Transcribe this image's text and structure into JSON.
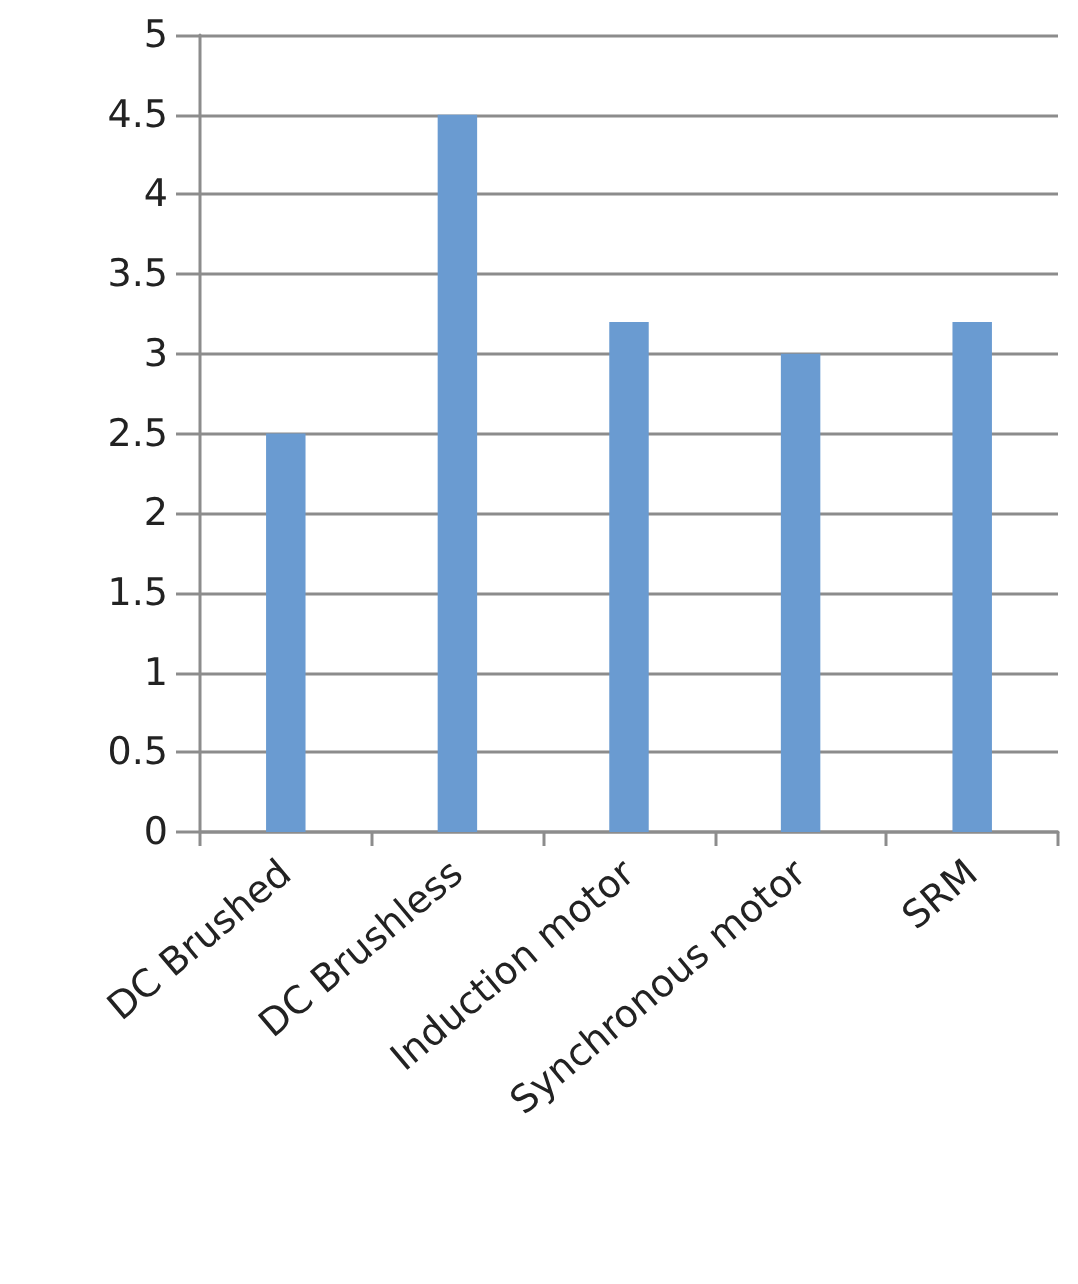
{
  "chart_data": {
    "type": "bar",
    "categories": [
      "DC Brushed",
      "DC Brushless",
      "Induction motor",
      "Synchronous motor",
      "SRM"
    ],
    "values": [
      2.5,
      4.5,
      3.2,
      3.0,
      3.2
    ],
    "color": "#6a9bd1",
    "ylim": [
      0,
      5
    ],
    "yticks": [
      0,
      0.5,
      1,
      1.5,
      2,
      2.5,
      3,
      3.5,
      4,
      4.5,
      5
    ],
    "grid": "y"
  }
}
